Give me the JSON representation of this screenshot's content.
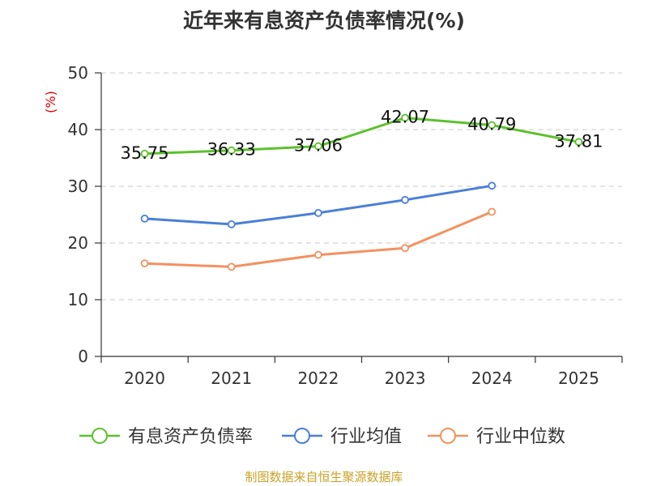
{
  "chart_data": {
    "type": "line",
    "title": "近年来有息资产负债率情况(%)",
    "ylabel": "(%)",
    "xlabel": "",
    "categories": [
      "2020",
      "2021",
      "2022",
      "2023",
      "2024",
      "2025"
    ],
    "ylim": [
      0,
      50
    ],
    "yticks": [
      "0",
      "10",
      "20",
      "30",
      "40",
      "50"
    ],
    "grid": true,
    "legend_position": "bottom",
    "series": [
      {
        "name": "有息资产负债率",
        "color": "#5cc12c",
        "values": [
          35.75,
          36.33,
          37.06,
          42.07,
          40.79,
          37.81
        ],
        "labels": [
          "35.75",
          "36.33",
          "37.06",
          "42.07",
          "40.79",
          "37.81"
        ]
      },
      {
        "name": "行业均值",
        "color": "#4a7fd8",
        "values": [
          24.3,
          23.3,
          25.3,
          27.6,
          30.1,
          null
        ]
      },
      {
        "name": "行业中位数",
        "color": "#f39160",
        "values": [
          16.4,
          15.8,
          17.9,
          19.1,
          25.5,
          null
        ]
      }
    ],
    "source": "制图数据来自恒生聚源数据库"
  }
}
